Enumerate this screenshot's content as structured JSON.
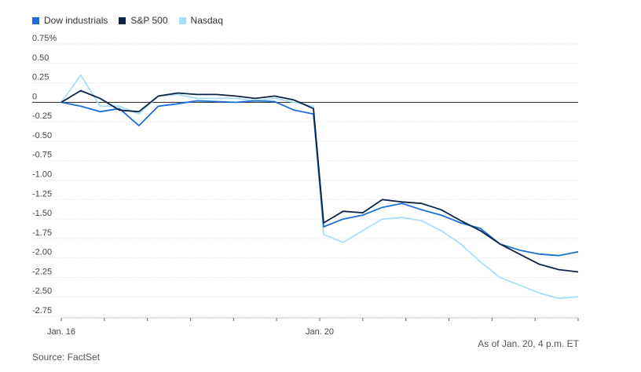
{
  "legend": [
    {
      "label": "Dow industrials",
      "color": "#1a6fd6"
    },
    {
      "label": "S&P 500",
      "color": "#0b2447"
    },
    {
      "label": "Nasdaq",
      "color": "#a9def7"
    }
  ],
  "notes": {
    "as_of": "As of Jan. 20, 4 p.m. ET",
    "source": "Source: FactSet"
  },
  "chart_data": {
    "type": "line",
    "title": "",
    "xlabel": "",
    "ylabel": "",
    "y_unit": "%",
    "ylim": [
      -2.75,
      0.75
    ],
    "y_ticks": [
      {
        "value": 0.75,
        "label": "0.75%"
      },
      {
        "value": 0.5,
        "label": "0.50"
      },
      {
        "value": 0.25,
        "label": "0.25"
      },
      {
        "value": 0,
        "label": "0"
      },
      {
        "value": -0.25,
        "label": "-0.25"
      },
      {
        "value": -0.5,
        "label": "-0.50"
      },
      {
        "value": -0.75,
        "label": "-0.75"
      },
      {
        "value": -1.0,
        "label": "-1.00"
      },
      {
        "value": -1.25,
        "label": "-1.25"
      },
      {
        "value": -1.5,
        "label": "-1.50"
      },
      {
        "value": -1.75,
        "label": "-1.75"
      },
      {
        "value": -2.0,
        "label": "-2.00"
      },
      {
        "value": -2.25,
        "label": "-2.25"
      },
      {
        "value": -2.5,
        "label": "-2.50"
      },
      {
        "value": -2.75,
        "label": "-2.75"
      }
    ],
    "x_labels": [
      "Jan. 16",
      "Jan. 20"
    ],
    "x_minor_ticks": 13,
    "grid": true,
    "zero_line": true,
    "legend_position": "top-left",
    "x_time": [
      "9:30",
      "10:00",
      "10:30",
      "11:00",
      "11:30",
      "12:00",
      "12:30",
      "13:00",
      "13:30",
      "14:00",
      "14:30",
      "15:00",
      "15:30",
      "16:00",
      "9:30",
      "10:00",
      "10:30",
      "11:00",
      "11:30",
      "12:00",
      "12:30",
      "13:00",
      "13:30",
      "14:00",
      "14:30",
      "15:00",
      "15:30",
      "16:00"
    ],
    "x_session": [
      "Jan. 16",
      "Jan. 16",
      "Jan. 16",
      "Jan. 16",
      "Jan. 16",
      "Jan. 16",
      "Jan. 16",
      "Jan. 16",
      "Jan. 16",
      "Jan. 16",
      "Jan. 16",
      "Jan. 16",
      "Jan. 16",
      "Jan. 16",
      "Jan. 20",
      "Jan. 20",
      "Jan. 20",
      "Jan. 20",
      "Jan. 20",
      "Jan. 20",
      "Jan. 20",
      "Jan. 20",
      "Jan. 20",
      "Jan. 20",
      "Jan. 20",
      "Jan. 20",
      "Jan. 20",
      "Jan. 20"
    ],
    "series": [
      {
        "name": "Dow industrials",
        "color": "#1a6fd6",
        "values": [
          0.0,
          -0.05,
          -0.12,
          -0.08,
          -0.3,
          -0.05,
          -0.02,
          0.02,
          0.01,
          0.0,
          0.02,
          0.01,
          -0.1,
          -0.15,
          -1.6,
          -1.5,
          -1.45,
          -1.35,
          -1.3,
          -1.38,
          -1.45,
          -1.55,
          -1.62,
          -1.82,
          -1.9,
          -1.95,
          -1.97,
          -1.92
        ]
      },
      {
        "name": "S&P 500",
        "color": "#0b2447",
        "values": [
          0.0,
          0.15,
          0.05,
          -0.1,
          -0.12,
          0.08,
          0.12,
          0.1,
          0.1,
          0.08,
          0.05,
          0.08,
          0.03,
          -0.08,
          -1.55,
          -1.4,
          -1.42,
          -1.25,
          -1.28,
          -1.3,
          -1.38,
          -1.52,
          -1.65,
          -1.82,
          -1.95,
          -2.08,
          -2.15,
          -2.18
        ]
      },
      {
        "name": "Nasdaq",
        "color": "#a9def7",
        "values": [
          0.0,
          0.35,
          -0.05,
          -0.05,
          -0.15,
          0.08,
          0.1,
          0.05,
          0.05,
          0.05,
          0.02,
          0.05,
          0.0,
          -0.05,
          -1.7,
          -1.8,
          -1.65,
          -1.5,
          -1.48,
          -1.52,
          -1.65,
          -1.82,
          -2.05,
          -2.25,
          -2.35,
          -2.45,
          -2.52,
          -2.5
        ]
      }
    ]
  }
}
